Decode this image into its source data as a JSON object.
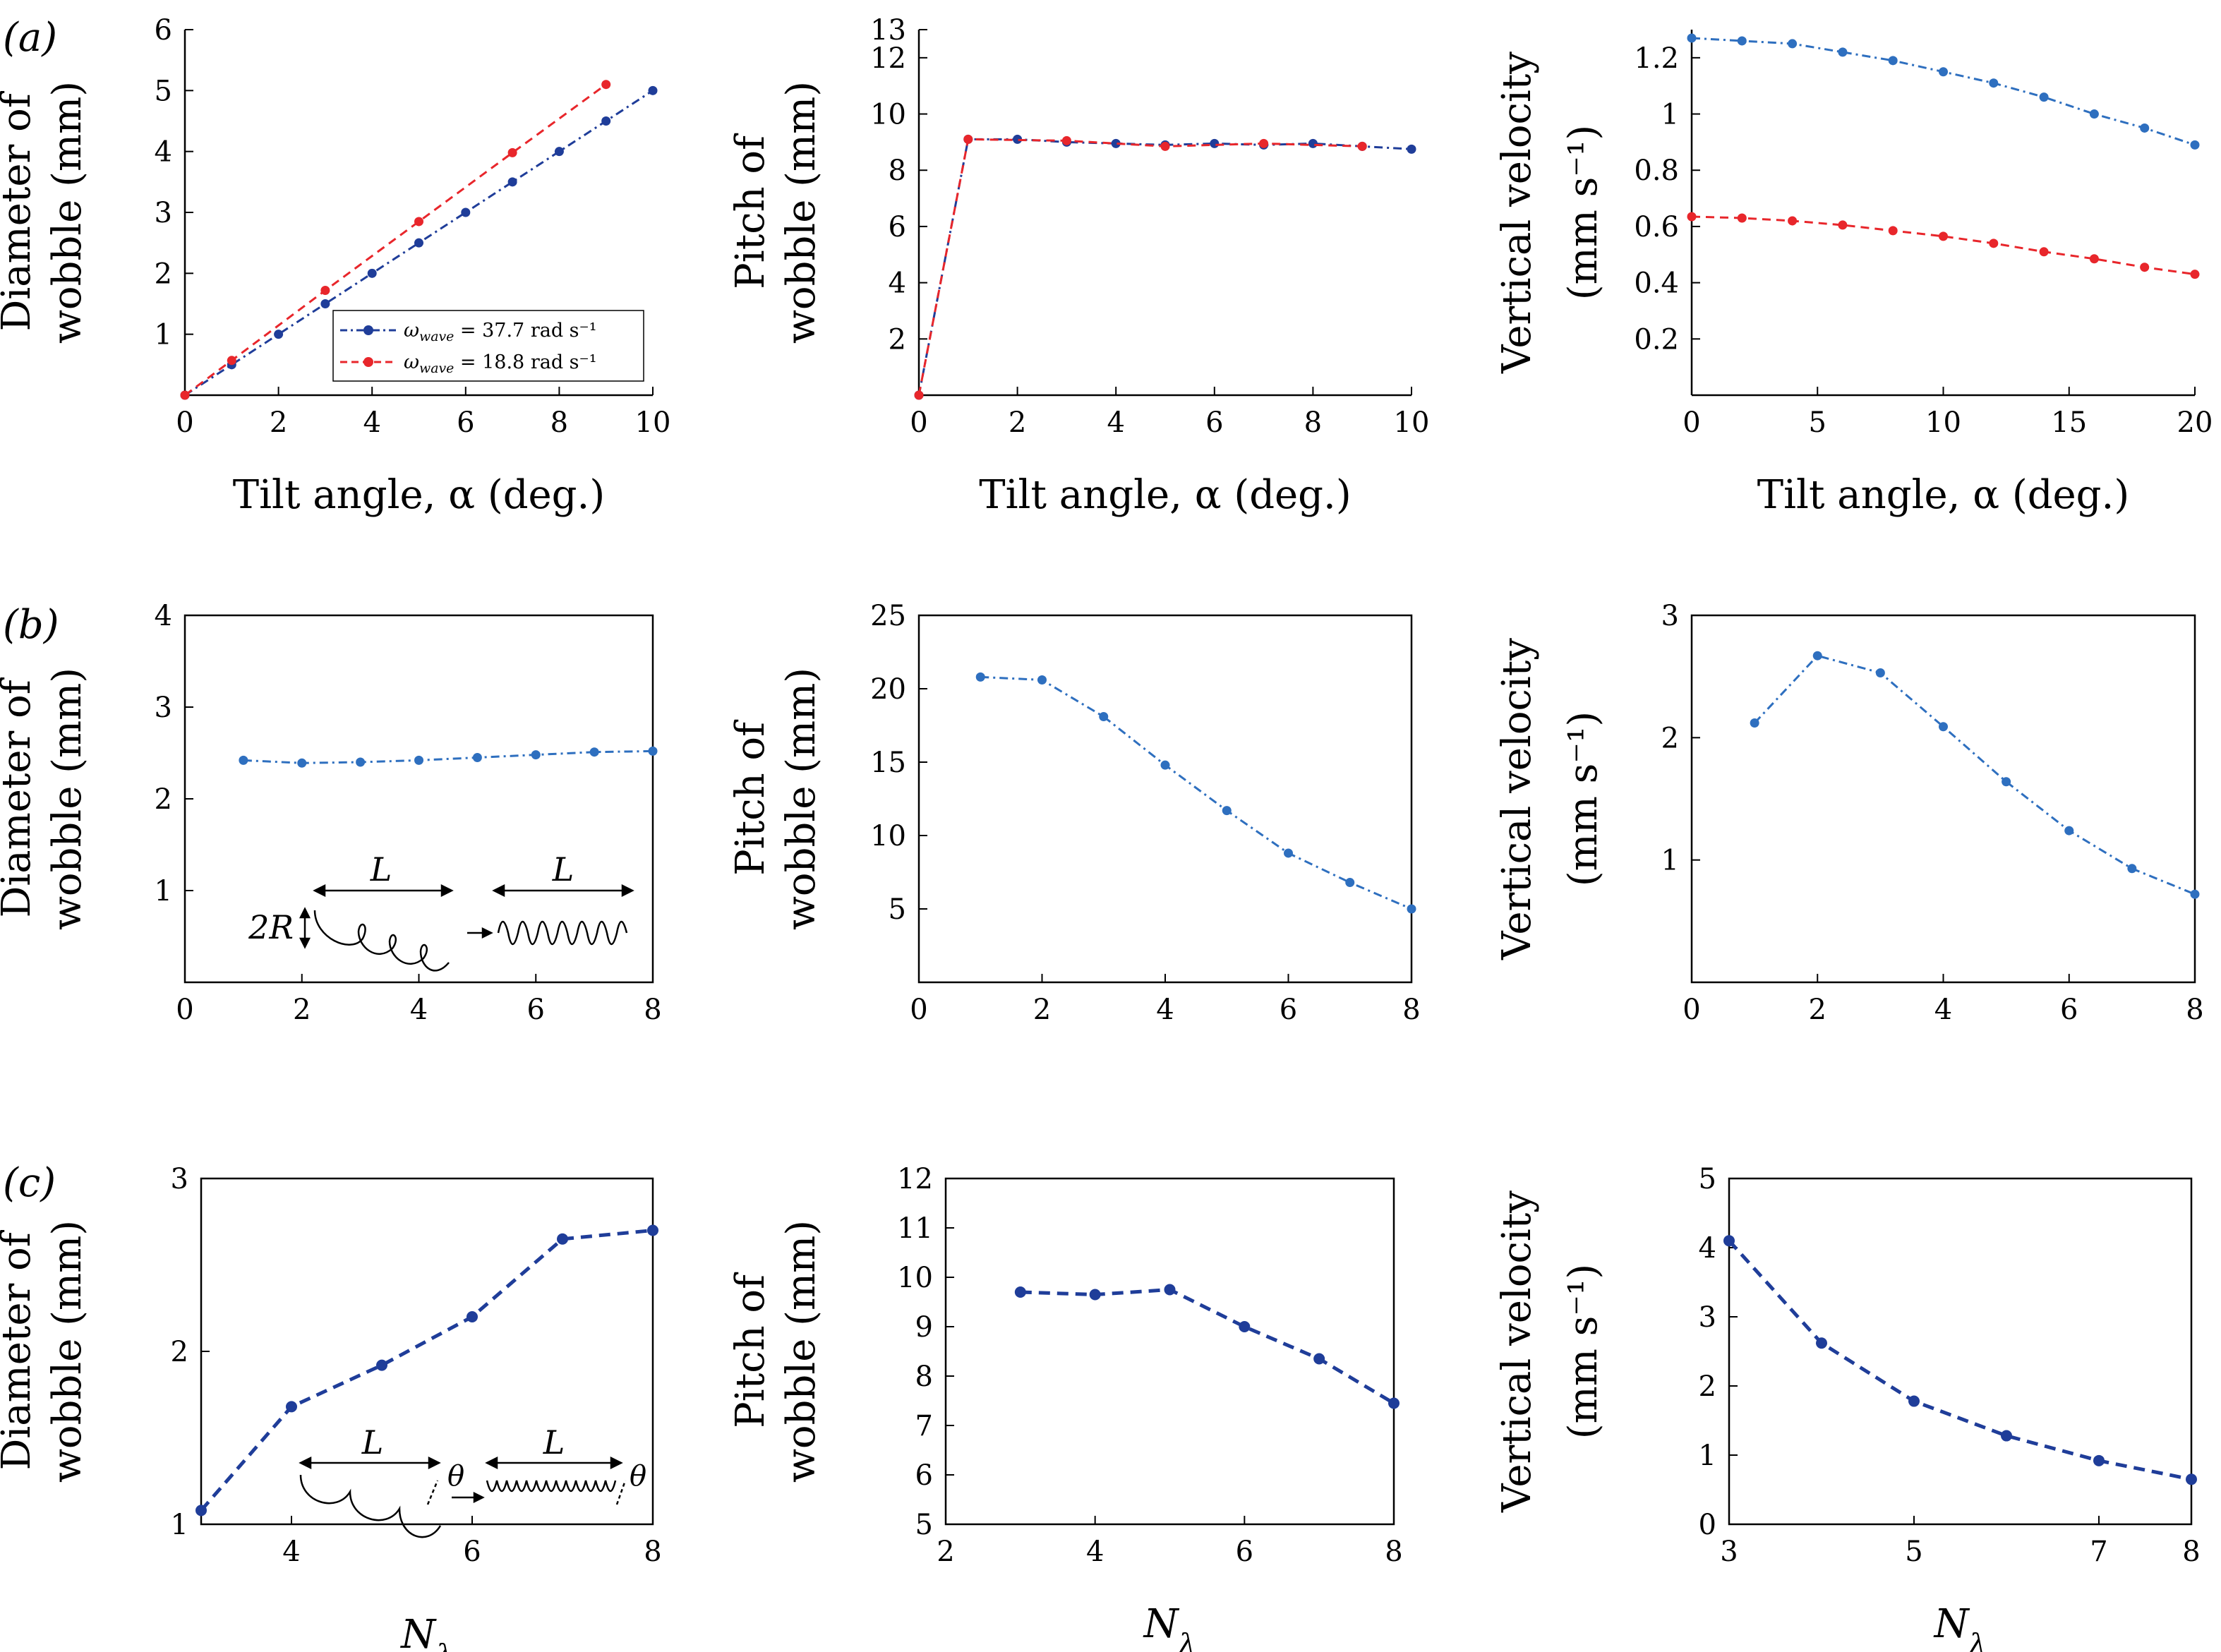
{
  "colors": {
    "blue_dark": "#1f3d99",
    "blue_light": "#2e6fbf",
    "red": "#e8262b",
    "purple": "#7a3a78",
    "axis": "#000000"
  },
  "panel_labels": [
    "(a)",
    "(b)",
    "(c)"
  ],
  "chart_data": [
    {
      "type": "line",
      "panel": "(a)",
      "xlabel": "Tilt angle, α (deg.)",
      "ylabel": [
        "Diameter of",
        "wobble (mm)"
      ],
      "xlim": [
        0,
        10
      ],
      "ylim": [
        0,
        6
      ],
      "xticks": [
        0,
        2,
        4,
        6,
        8,
        10
      ],
      "yticks": [
        1,
        2,
        3,
        4,
        5,
        6
      ],
      "frame": "open",
      "legend": {
        "placement": "lower-right",
        "entries": [
          "ω_wave = 37.7 rad s⁻¹",
          "ω_wave = 18.8 rad s⁻¹"
        ]
      },
      "series": [
        {
          "name": "ω_wave = 37.7 rad s⁻¹",
          "color": "blue_dark",
          "x": [
            0,
            1,
            2,
            3,
            4,
            5,
            6,
            7,
            8,
            9,
            10
          ],
          "y": [
            0,
            0.5,
            1.0,
            1.5,
            2.0,
            2.5,
            3.0,
            3.5,
            4.0,
            4.5,
            5.0
          ]
        },
        {
          "name": "ω_wave = 18.8 rad s⁻¹",
          "color": "red",
          "x": [
            0,
            1,
            3,
            5,
            7,
            9
          ],
          "y": [
            0,
            0.57,
            1.72,
            2.85,
            3.98,
            5.1
          ]
        }
      ]
    },
    {
      "type": "line",
      "panel": "(a)",
      "xlabel": "Tilt angle, α (deg.)",
      "ylabel": [
        "Pitch of",
        "wobble (mm)"
      ],
      "xlim": [
        0,
        10
      ],
      "ylim": [
        0,
        13
      ],
      "xticks": [
        0,
        2,
        4,
        6,
        8,
        10
      ],
      "yticks": [
        2,
        4,
        6,
        8,
        10,
        12,
        13
      ],
      "frame": "open",
      "series": [
        {
          "color": "blue_dark",
          "x": [
            0,
            1,
            2,
            3,
            4,
            5,
            6,
            7,
            8,
            9,
            10
          ],
          "y": [
            0,
            9.1,
            9.1,
            9.0,
            8.95,
            8.9,
            8.95,
            8.9,
            8.95,
            8.85,
            8.75
          ]
        },
        {
          "color": "red",
          "x": [
            0,
            1,
            3,
            5,
            7,
            9
          ],
          "y": [
            0,
            9.1,
            9.05,
            8.85,
            8.95,
            8.85
          ]
        }
      ]
    },
    {
      "type": "line",
      "panel": "(a)",
      "xlabel": "Tilt angle, α (deg.)",
      "ylabel": [
        "Vertical velocity",
        "(mm s⁻¹)"
      ],
      "xlim": [
        0,
        20
      ],
      "ylim": [
        0,
        1.3
      ],
      "xticks": [
        0,
        5,
        10,
        15,
        20
      ],
      "yticks": [
        0.2,
        0.4,
        0.6,
        0.8,
        1.0,
        1.2
      ],
      "frame": "open",
      "series": [
        {
          "color": "blue_light",
          "x": [
            0,
            2,
            4,
            6,
            8,
            10,
            12,
            14,
            16,
            18,
            20
          ],
          "y": [
            1.27,
            1.26,
            1.25,
            1.22,
            1.19,
            1.15,
            1.11,
            1.06,
            1.0,
            0.95,
            0.89
          ]
        },
        {
          "color": "red",
          "x": [
            0,
            2,
            4,
            6,
            8,
            10,
            12,
            14,
            16,
            18,
            20
          ],
          "y": [
            0.635,
            0.63,
            0.62,
            0.605,
            0.585,
            0.565,
            0.54,
            0.51,
            0.485,
            0.455,
            0.43
          ]
        }
      ]
    },
    {
      "type": "line",
      "panel": "(b)",
      "xlabel": "",
      "ylabel": [
        "Diameter of",
        "wobble (mm)"
      ],
      "xlim": [
        0,
        8
      ],
      "ylim": [
        0,
        4
      ],
      "xticks": [
        0,
        2,
        4,
        6,
        8
      ],
      "yticks": [
        1,
        2,
        3,
        4
      ],
      "frame": "box",
      "series": [
        {
          "color": "blue_light",
          "x": [
            1,
            2,
            3,
            4,
            5,
            6,
            7,
            8
          ],
          "y": [
            2.42,
            2.39,
            2.4,
            2.42,
            2.45,
            2.48,
            2.51,
            2.52
          ]
        }
      ],
      "annotations": [
        "L",
        "L",
        "2R"
      ]
    },
    {
      "type": "line",
      "panel": "(b)",
      "xlabel": "",
      "ylabel": [
        "Pitch of",
        "wobble (mm)"
      ],
      "xlim": [
        0,
        8
      ],
      "ylim": [
        0,
        25
      ],
      "xticks": [
        0,
        2,
        4,
        6,
        8
      ],
      "yticks": [
        5,
        10,
        15,
        20,
        25
      ],
      "frame": "box",
      "series": [
        {
          "color": "blue_light",
          "x": [
            1,
            2,
            3,
            4,
            5,
            6,
            7,
            8
          ],
          "y": [
            20.8,
            20.6,
            18.1,
            14.8,
            11.7,
            8.8,
            6.8,
            5.0
          ]
        }
      ]
    },
    {
      "type": "line",
      "panel": "(b)",
      "xlabel": "",
      "ylabel": [
        "Vertical velocity",
        "(mm s⁻¹)"
      ],
      "xlim": [
        0,
        8
      ],
      "ylim": [
        0,
        3
      ],
      "xticks": [
        0,
        2,
        4,
        6,
        8
      ],
      "yticks": [
        1,
        2,
        3
      ],
      "frame": "box",
      "series": [
        {
          "color": "blue_light",
          "x": [
            1,
            2,
            3,
            4,
            5,
            6,
            7,
            8
          ],
          "y": [
            2.12,
            2.67,
            2.53,
            2.09,
            1.64,
            1.24,
            0.93,
            0.72
          ]
        }
      ]
    },
    {
      "type": "line",
      "panel": "(c)",
      "xlabel": "N_λ",
      "ylabel": [
        "Diameter of",
        "wobble (mm)"
      ],
      "xlim": [
        3,
        8
      ],
      "ylim": [
        1,
        3
      ],
      "xticks": [
        4,
        6,
        8
      ],
      "yticks": [
        1,
        2,
        3
      ],
      "frame": "box",
      "series": [
        {
          "color": "blue_dark",
          "x": [
            3,
            4,
            5,
            6,
            7,
            8
          ],
          "y": [
            1.08,
            1.68,
            1.92,
            2.2,
            2.65,
            2.7
          ]
        }
      ],
      "annotations": [
        "L",
        "L",
        "θ",
        "θ"
      ]
    },
    {
      "type": "line",
      "panel": "(c)",
      "xlabel": "N_λ",
      "ylabel": [
        "Pitch of",
        "wobble (mm)"
      ],
      "xlim": [
        2,
        8
      ],
      "ylim": [
        5,
        12
      ],
      "xticks": [
        2,
        4,
        6,
        8
      ],
      "yticks": [
        5,
        6,
        7,
        8,
        9,
        10,
        11,
        12
      ],
      "frame": "box",
      "series": [
        {
          "color": "blue_dark",
          "x": [
            3,
            4,
            5,
            6,
            7,
            8
          ],
          "y": [
            9.7,
            9.65,
            9.75,
            9.0,
            8.35,
            7.45
          ]
        }
      ]
    },
    {
      "type": "line",
      "panel": "(c)",
      "xlabel": "N_λ",
      "ylabel": [
        "Vertical velocity",
        "(mm s⁻¹)"
      ],
      "xlim": [
        3,
        8
      ],
      "ylim": [
        0,
        5
      ],
      "xticks": [
        3,
        5,
        7,
        8
      ],
      "yticks": [
        0,
        1,
        2,
        3,
        4,
        5
      ],
      "frame": "box",
      "series": [
        {
          "color": "blue_dark",
          "x": [
            3,
            4,
            5,
            6,
            7,
            8
          ],
          "y": [
            4.1,
            2.62,
            1.78,
            1.28,
            0.92,
            0.65
          ]
        }
      ]
    }
  ]
}
